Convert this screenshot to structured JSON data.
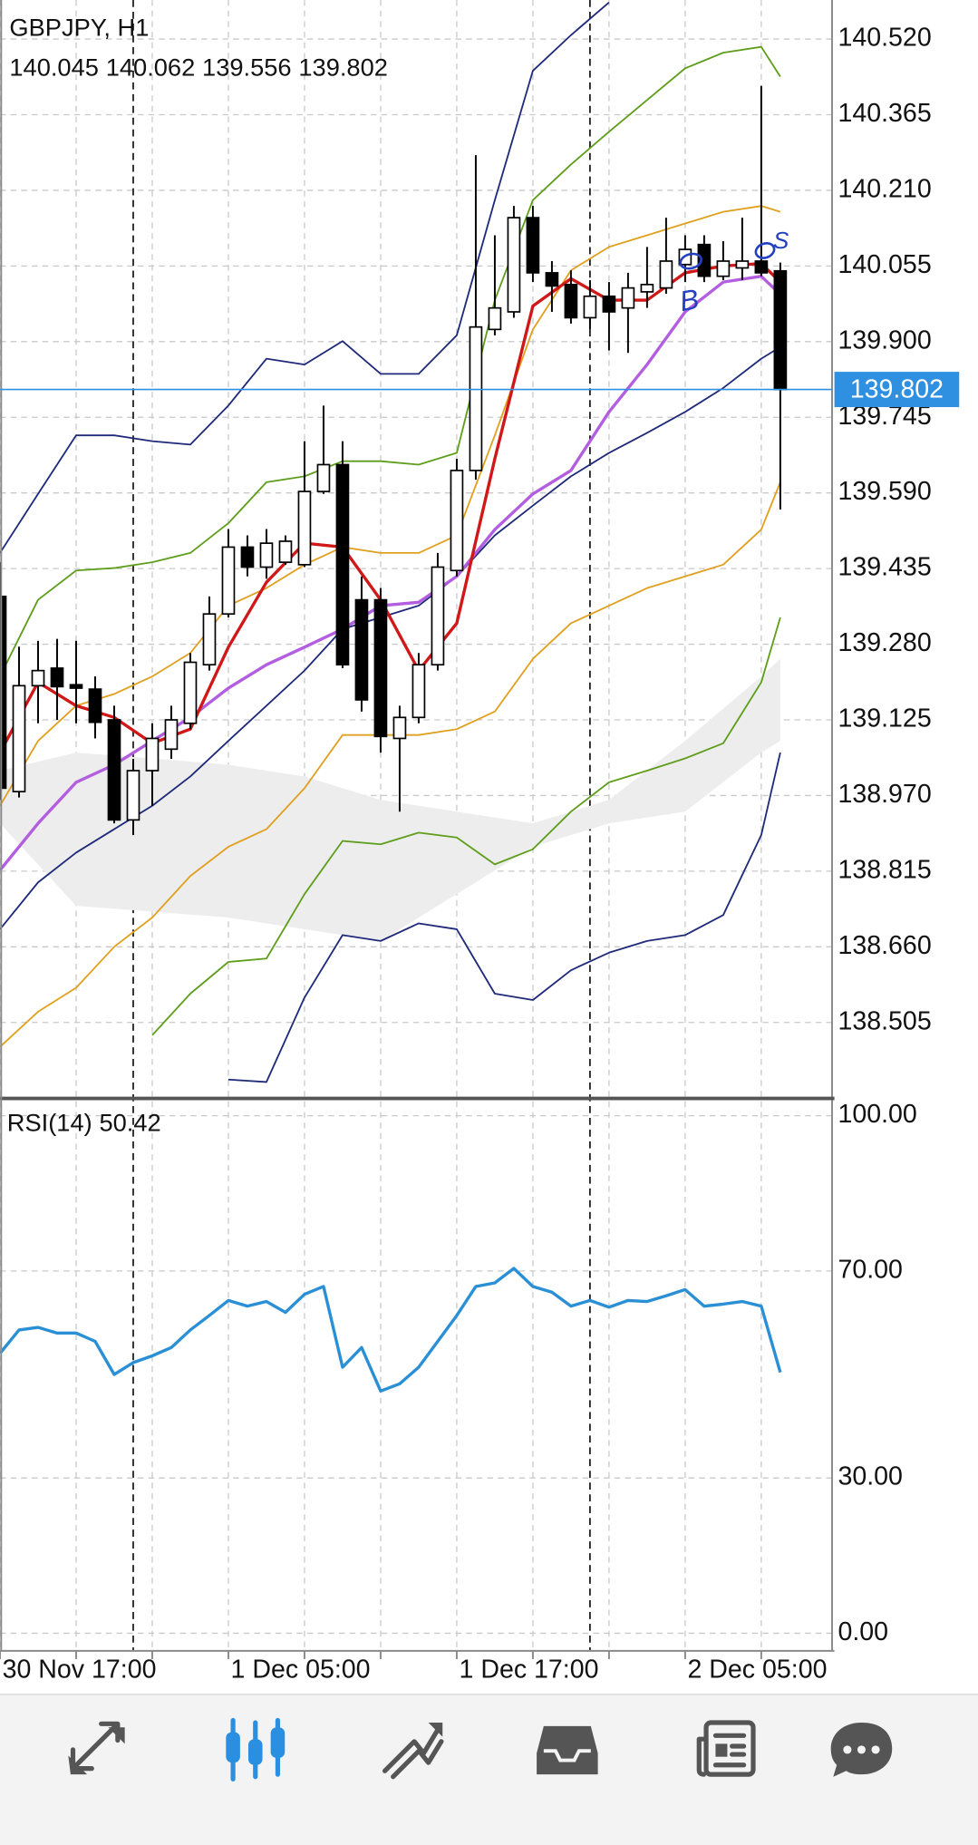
{
  "chart_data": [
    {
      "type": "candlestick",
      "title": "GBPJPY, H1",
      "x": [
        0,
        1,
        2,
        3,
        4,
        5,
        6,
        7,
        8,
        9,
        10,
        11,
        12,
        13,
        14,
        15,
        16,
        17,
        18,
        19,
        20,
        21,
        22,
        23,
        24,
        25,
        26,
        27,
        28,
        29,
        30,
        31,
        32,
        33,
        34,
        35,
        36,
        37,
        38,
        39,
        40,
        41
      ],
      "open": [
        139.378,
        138.978,
        139.195,
        139.231,
        139.197,
        139.188,
        139.125,
        138.92,
        139.021,
        139.065,
        139.118,
        139.238,
        139.342,
        139.479,
        139.438,
        139.448,
        139.443,
        139.593,
        139.648,
        139.371,
        139.371,
        139.087,
        139.13,
        139.238,
        139.431,
        139.636,
        139.925,
        139.961,
        140.154,
        140.041,
        140.017,
        139.949,
        139.993,
        139.969,
        140.002,
        140.01,
        140.058,
        140.099,
        140.034,
        140.051,
        140.065,
        140.045
      ],
      "high": [
        139.448,
        139.275,
        139.287,
        139.291,
        139.287,
        139.214,
        139.154,
        139.045,
        139.118,
        139.154,
        139.262,
        139.378,
        139.516,
        139.503,
        139.516,
        139.503,
        139.696,
        139.769,
        139.696,
        139.419,
        139.395,
        139.154,
        139.262,
        139.467,
        139.66,
        140.282,
        140.118,
        140.178,
        140.178,
        140.065,
        140.046,
        140.026,
        140.022,
        140.041,
        140.094,
        140.154,
        140.118,
        140.118,
        140.106,
        140.154,
        140.424,
        140.062
      ],
      "low": [
        138.961,
        138.966,
        139.118,
        139.125,
        139.118,
        139.087,
        138.913,
        138.889,
        138.949,
        139.045,
        139.106,
        139.226,
        139.335,
        139.419,
        139.414,
        139.443,
        139.438,
        139.588,
        139.231,
        139.142,
        139.058,
        138.937,
        139.118,
        139.226,
        139.419,
        139.617,
        139.913,
        139.949,
        140.022,
        139.961,
        139.937,
        139.925,
        139.882,
        139.877,
        139.969,
        139.998,
        140.022,
        140.022,
        140.026,
        140.026,
        140.034,
        139.556
      ],
      "close": [
        138.985,
        139.195,
        139.226,
        139.193,
        139.19,
        139.12,
        138.92,
        139.021,
        139.087,
        139.125,
        139.243,
        139.342,
        139.479,
        139.438,
        139.487,
        139.491,
        139.593,
        139.648,
        139.238,
        139.166,
        139.091,
        139.13,
        139.238,
        139.438,
        139.636,
        139.93,
        139.969,
        140.154,
        140.041,
        140.014,
        139.949,
        139.993,
        139.961,
        140.01,
        140.017,
        140.065,
        140.089,
        140.034,
        140.065,
        140.065,
        140.041,
        139.802
      ],
      "up_color": "#ffffff",
      "down_color": "#000000",
      "last_price_color": "#2f8fe0",
      "xlim": [
        0,
        43.72
      ],
      "ylim": [
        138.353,
        140.6
      ],
      "yticks": [
        {
          "value": 140.52,
          "label": "140.520"
        },
        140.365,
        {
          "value": 140.21,
          "label": "140.210"
        },
        140.055,
        {
          "value": 139.9,
          "label": "139.900"
        },
        139.745,
        {
          "value": 139.59,
          "label": "139.590"
        },
        139.435,
        {
          "value": 139.28,
          "label": "139.280"
        },
        139.125,
        {
          "value": 138.97,
          "label": "138.970"
        },
        138.815,
        {
          "value": 138.66,
          "label": "138.660"
        },
        138.505
      ],
      "grid": true,
      "period_separators": [
        7,
        31
      ],
      "cloud": {
        "color": "#ededed",
        "x": [
          0,
          4,
          8,
          12,
          16,
          20,
          24,
          28,
          32,
          36,
          40,
          41
        ],
        "upper": [
          139.021,
          139.058,
          139.046,
          139.033,
          139.009,
          138.961,
          138.937,
          138.913,
          138.961,
          139.082,
          139.214,
          139.25
        ],
        "lower": [
          138.913,
          138.744,
          138.732,
          138.72,
          138.696,
          138.672,
          138.768,
          138.865,
          138.913,
          138.937,
          139.058,
          139.082
        ]
      },
      "overlays": [
        {
          "color": "#1f2a7a",
          "x": [
            0,
            2,
            4,
            6,
            8,
            10,
            12,
            14,
            16,
            18,
            20,
            22,
            24,
            26,
            28,
            30,
            32,
            34,
            36,
            38,
            40,
            41
          ],
          "values": [
            139.467,
            139.588,
            139.708,
            139.708,
            139.696,
            139.689,
            139.769,
            139.865,
            139.853,
            139.901,
            139.834,
            139.834,
            139.913,
            140.19,
            140.455,
            140.528,
            140.595,
            null,
            null,
            null,
            null,
            null
          ]
        },
        {
          "color": "#1f2a7a",
          "x": [
            0,
            2,
            4,
            6,
            8,
            10,
            12,
            14,
            16,
            18,
            20,
            22,
            24,
            26,
            28,
            30,
            32,
            34,
            36,
            38,
            40,
            41
          ],
          "values": [
            138.696,
            138.792,
            138.853,
            138.901,
            138.949,
            139.009,
            139.082,
            139.154,
            139.226,
            139.311,
            139.335,
            139.359,
            139.419,
            139.503,
            139.564,
            139.624,
            139.672,
            139.713,
            139.756,
            139.805,
            139.865,
            139.889
          ]
        },
        {
          "color": "#1f2a7a",
          "x": [
            0,
            2,
            4,
            6,
            8,
            10,
            12,
            14,
            16,
            18,
            20,
            22,
            24,
            26,
            28,
            30,
            32,
            34,
            36,
            38,
            40,
            41
          ],
          "values": [
            null,
            null,
            null,
            null,
            null,
            null,
            138.388,
            138.383,
            138.556,
            138.684,
            138.672,
            138.708,
            138.696,
            138.564,
            138.551,
            138.612,
            138.648,
            138.672,
            138.684,
            138.725,
            138.889,
            139.058
          ]
        },
        {
          "color": "#5e9e1c",
          "x": [
            0,
            2,
            4,
            6,
            8,
            10,
            12,
            14,
            16,
            18,
            20,
            22,
            24,
            26,
            28,
            30,
            32,
            34,
            36,
            38,
            40,
            41
          ],
          "values": [
            139.214,
            139.371,
            139.431,
            139.436,
            139.448,
            139.467,
            139.528,
            139.612,
            139.624,
            139.655,
            139.655,
            139.648,
            139.672,
            139.985,
            140.19,
            140.263,
            140.33,
            140.395,
            140.46,
            140.492,
            140.504,
            140.443
          ]
        },
        {
          "color": "#5e9e1c",
          "x": [
            0,
            2,
            4,
            6,
            8,
            10,
            12,
            14,
            16,
            18,
            20,
            22,
            24,
            26,
            28,
            30,
            32,
            34,
            36,
            38,
            40,
            41
          ],
          "values": [
            null,
            null,
            null,
            null,
            138.479,
            138.564,
            138.629,
            138.636,
            138.768,
            138.877,
            138.87,
            138.894,
            138.884,
            138.829,
            138.86,
            138.937,
            138.997,
            139.021,
            139.046,
            139.077,
            139.202,
            139.335
          ]
        },
        {
          "color": "#e0a020",
          "x": [
            0,
            2,
            4,
            6,
            8,
            10,
            12,
            14,
            16,
            18,
            20,
            22,
            24,
            26,
            28,
            30,
            32,
            34,
            36,
            38,
            40,
            41
          ],
          "values": [
            138.949,
            139.082,
            139.154,
            139.178,
            139.214,
            139.262,
            139.359,
            139.395,
            139.443,
            139.479,
            139.467,
            139.467,
            139.503,
            139.708,
            139.925,
            140.046,
            140.094,
            140.118,
            140.142,
            140.166,
            140.178,
            140.166
          ]
        },
        {
          "color": "#e0a020",
          "x": [
            0,
            2,
            4,
            6,
            8,
            10,
            12,
            14,
            16,
            18,
            20,
            22,
            24,
            26,
            28,
            30,
            32,
            34,
            36,
            38,
            40,
            41
          ],
          "values": [
            138.455,
            138.527,
            138.576,
            138.66,
            138.72,
            138.805,
            138.865,
            138.901,
            138.985,
            139.094,
            139.094,
            139.094,
            139.106,
            139.142,
            139.25,
            139.323,
            139.359,
            139.395,
            139.419,
            139.443,
            139.515,
            139.612
          ]
        },
        {
          "color": "#b35ee0",
          "x": [
            0,
            2,
            4,
            6,
            8,
            10,
            12,
            14,
            16,
            18,
            20,
            22,
            24,
            26,
            28,
            30,
            32,
            34,
            36,
            38,
            40,
            41
          ],
          "values": [
            138.817,
            138.913,
            138.997,
            139.033,
            139.082,
            139.13,
            139.19,
            139.238,
            139.274,
            139.311,
            139.359,
            139.366,
            139.419,
            139.515,
            139.588,
            139.636,
            139.756,
            139.853,
            139.961,
            140.022,
            140.034,
            139.997
          ]
        },
        {
          "color": "#d01818",
          "x": [
            0,
            2,
            4,
            6,
            8,
            10,
            12,
            14,
            16,
            18,
            20,
            22,
            24,
            26,
            28,
            30,
            32,
            34,
            36,
            38,
            40,
            41
          ],
          "values": [
            139.058,
            139.202,
            139.154,
            139.13,
            139.077,
            139.106,
            139.274,
            139.407,
            139.487,
            139.479,
            139.371,
            139.226,
            139.323,
            139.66,
            139.973,
            140.029,
            139.985,
            139.985,
            140.041,
            140.055,
            140.06,
            140.022
          ]
        }
      ],
      "annotations": [
        {
          "text": "B",
          "color": "#2340c0"
        },
        {
          "text": "S",
          "color": "#2340c0"
        }
      ]
    },
    {
      "type": "line",
      "x": [
        0,
        1,
        2,
        3,
        4,
        5,
        6,
        7,
        8,
        9,
        10,
        11,
        12,
        13,
        14,
        15,
        16,
        17,
        18,
        19,
        20,
        21,
        22,
        23,
        24,
        25,
        26,
        27,
        28,
        29,
        30,
        31,
        32,
        33,
        34,
        35,
        36,
        37,
        38,
        39,
        40,
        41
      ],
      "series": [
        {
          "name": "RSI(14)",
          "color": "#2a8fd4",
          "values": [
            54.1,
            58.6,
            59.1,
            58.0,
            58.0,
            56.4,
            50.0,
            52.3,
            53.6,
            55.2,
            58.6,
            61.4,
            64.3,
            63.2,
            64.1,
            62.0,
            65.5,
            67.0,
            51.4,
            55.2,
            46.8,
            48.2,
            51.4,
            56.4,
            61.4,
            67.0,
            67.7,
            70.5,
            67.0,
            65.9,
            63.2,
            64.3,
            63.0,
            64.3,
            64.1,
            65.2,
            66.4,
            63.2,
            63.6,
            64.1,
            63.2,
            50.42
          ]
        }
      ],
      "xlim": [
        0,
        43.72
      ],
      "ylim": [
        -3.4,
        103
      ],
      "yticks": [
        {
          "value": 100,
          "label": "100.00"
        },
        {
          "value": 70,
          "label": "70.00"
        },
        {
          "value": 30,
          "label": "30.00"
        },
        {
          "value": 0,
          "label": "0.00"
        }
      ],
      "xticks": [
        {
          "value": 0,
          "label": "30 Nov 17:00"
        },
        {
          "value": 12,
          "label": "1 Dec 05:00"
        },
        {
          "value": 24,
          "label": "1 Dec 17:00"
        },
        {
          "value": 36,
          "label": "2 Dec 05:00"
        }
      ],
      "minor_xticks": [
        4,
        8,
        16,
        20,
        28,
        32,
        40
      ],
      "grid": true
    }
  ]
}
